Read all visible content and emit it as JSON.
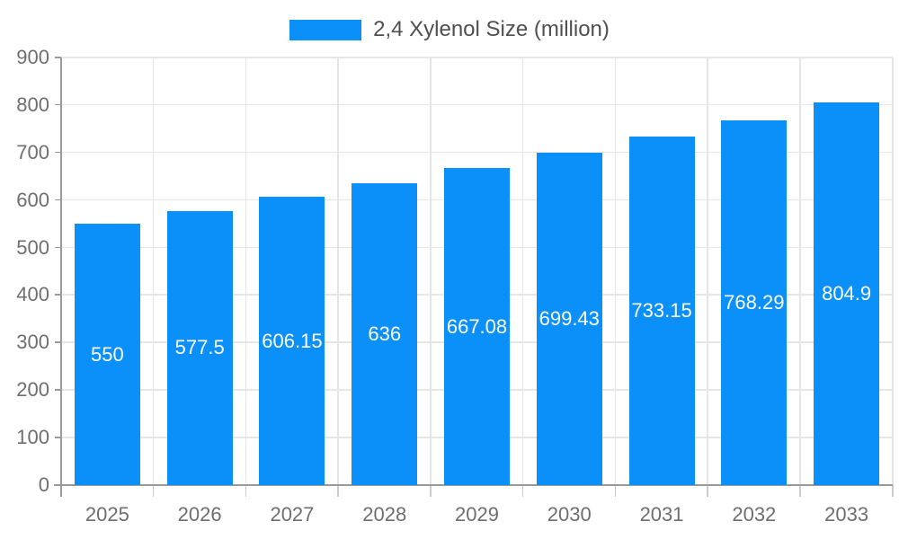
{
  "legend": {
    "label": "2,4 Xylenol Size (million)"
  },
  "chart_data": {
    "type": "bar",
    "title": "",
    "xlabel": "",
    "ylabel": "",
    "categories": [
      "2025",
      "2026",
      "2027",
      "2028",
      "2029",
      "2030",
      "2031",
      "2032",
      "2033"
    ],
    "series": [
      {
        "name": "2,4 Xylenol Size (million)",
        "values": [
          550,
          577.5,
          606.15,
          636,
          667.08,
          699.43,
          733.15,
          768.29,
          804.9
        ]
      }
    ],
    "value_labels": [
      "550",
      "577.5",
      "606.15",
      "636",
      "667.08",
      "699.43",
      "733.15",
      "768.29",
      "804.9"
    ],
    "ylim": [
      0,
      900
    ],
    "y_ticks": [
      0,
      100,
      200,
      300,
      400,
      500,
      600,
      700,
      800,
      900
    ],
    "grid": true,
    "legend_position": "top-center",
    "colors": {
      "bar": "#0a90f8",
      "axis_line": "#9a9a9a",
      "grid_line": "#e6e6e6",
      "category_tick": "#cccccc",
      "axis_text": "#6e6e6e",
      "legend_text": "#4f4f4f",
      "value_text": "#ffffff",
      "background": "#ffffff"
    }
  }
}
